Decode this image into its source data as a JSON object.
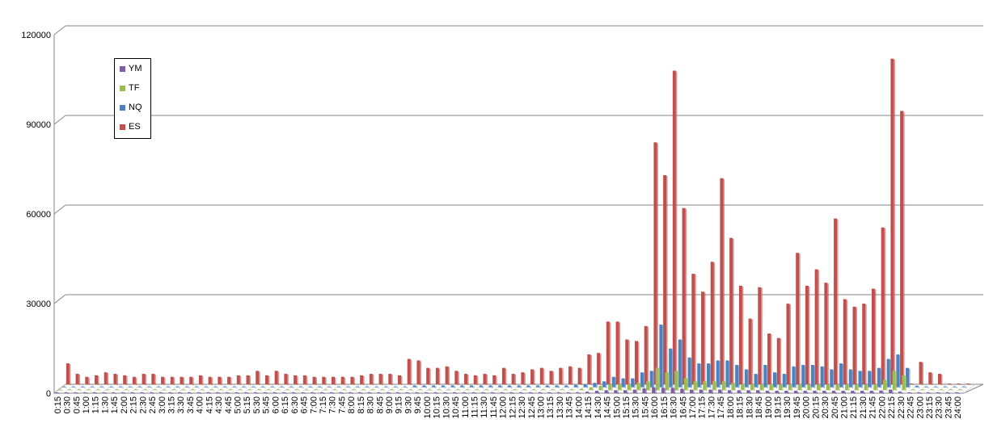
{
  "chart_data": {
    "type": "bar",
    "title": "",
    "xlabel": "",
    "ylabel": "",
    "ylim": [
      0,
      120000
    ],
    "yticks": [
      0,
      30000,
      60000,
      90000,
      120000
    ],
    "grid": true,
    "legend_position": "top-left",
    "categories": [
      "0:15",
      "0:30",
      "0:45",
      "1:00",
      "1:15",
      "1:30",
      "1:45",
      "2:00",
      "2:15",
      "2:30",
      "2:45",
      "3:00",
      "3:15",
      "3:30",
      "3:45",
      "4:00",
      "4:15",
      "4:30",
      "4:45",
      "5:00",
      "5:15",
      "5:30",
      "5:45",
      "6:00",
      "6:15",
      "6:30",
      "6:45",
      "7:00",
      "7:15",
      "7:30",
      "7:45",
      "8:00",
      "8:15",
      "8:30",
      "8:45",
      "9:00",
      "9:15",
      "9:30",
      "9:45",
      "10:00",
      "10:15",
      "10:30",
      "10:45",
      "11:00",
      "11:15",
      "11:30",
      "11:45",
      "12:00",
      "12:15",
      "12:30",
      "12:45",
      "13:00",
      "13:15",
      "13:30",
      "13:45",
      "14:00",
      "14:15",
      "14:30",
      "14:45",
      "15:00",
      "15:15",
      "15:30",
      "15:45",
      "16:00",
      "16:15",
      "16:30",
      "16:45",
      "17:00",
      "17:15",
      "17:30",
      "17:45",
      "18:00",
      "18:15",
      "18:30",
      "18:45",
      "19:00",
      "19:15",
      "19:30",
      "19:45",
      "20:00",
      "20:15",
      "20:30",
      "20:45",
      "21:00",
      "21:15",
      "21:30",
      "21:45",
      "22:00",
      "22:15",
      "22:30",
      "22:45",
      "23:00",
      "23:15",
      "23:30",
      "23:45",
      "24:00"
    ],
    "series": [
      {
        "name": "YM",
        "color": "#7b5da8",
        "values": [
          0,
          0,
          0,
          0,
          0,
          0,
          0,
          0,
          0,
          0,
          0,
          0,
          0,
          0,
          0,
          0,
          0,
          0,
          0,
          0,
          0,
          0,
          0,
          0,
          0,
          0,
          0,
          0,
          0,
          0,
          0,
          0,
          0,
          0,
          0,
          0,
          0,
          100,
          100,
          100,
          100,
          100,
          100,
          100,
          100,
          100,
          100,
          100,
          100,
          100,
          100,
          100,
          100,
          100,
          100,
          300,
          500,
          800,
          1000,
          1000,
          1000,
          1200,
          1600,
          2000,
          1800,
          1800,
          1500,
          1200,
          1200,
          1200,
          1200,
          1000,
          1000,
          1000,
          1000,
          800,
          800,
          800,
          800,
          800,
          800,
          800,
          800,
          800,
          800,
          800,
          800,
          900,
          1200,
          500,
          0,
          0,
          0,
          0,
          0,
          0
        ]
      },
      {
        "name": "TF",
        "color": "#9bbb59",
        "values": [
          0,
          0,
          0,
          0,
          0,
          0,
          0,
          0,
          0,
          0,
          0,
          0,
          0,
          0,
          0,
          0,
          0,
          0,
          0,
          0,
          0,
          0,
          0,
          0,
          0,
          0,
          0,
          0,
          0,
          0,
          0,
          0,
          0,
          0,
          0,
          0,
          0,
          200,
          200,
          200,
          200,
          200,
          200,
          200,
          200,
          200,
          200,
          200,
          200,
          200,
          200,
          200,
          200,
          200,
          300,
          500,
          1000,
          1500,
          2000,
          2000,
          2000,
          2500,
          3000,
          7500,
          6000,
          6500,
          4000,
          3000,
          3000,
          3000,
          3000,
          2500,
          2000,
          2000,
          2000,
          2000,
          1800,
          1800,
          1800,
          1800,
          1800,
          1800,
          1800,
          1800,
          1800,
          1800,
          2000,
          3500,
          6500,
          5000,
          0,
          0,
          0,
          0,
          0,
          0
        ]
      },
      {
        "name": "NQ",
        "color": "#4f81bd",
        "values": [
          200,
          200,
          200,
          200,
          200,
          200,
          200,
          200,
          200,
          200,
          200,
          200,
          200,
          200,
          200,
          200,
          200,
          200,
          200,
          200,
          200,
          200,
          200,
          200,
          200,
          200,
          200,
          200,
          200,
          200,
          200,
          200,
          200,
          200,
          200,
          200,
          200,
          600,
          600,
          600,
          600,
          600,
          600,
          600,
          600,
          600,
          600,
          600,
          600,
          600,
          600,
          600,
          600,
          600,
          800,
          1000,
          1500,
          2000,
          3500,
          3000,
          3000,
          5000,
          5500,
          21000,
          13000,
          16000,
          10000,
          8000,
          8000,
          9000,
          9000,
          7500,
          6000,
          4500,
          7500,
          5000,
          4500,
          7000,
          7500,
          7500,
          7000,
          6000,
          8000,
          6000,
          5500,
          5500,
          6500,
          9500,
          11000,
          6500,
          500,
          200,
          200,
          200,
          200,
          200
        ]
      },
      {
        "name": "ES",
        "color": "#c0504d",
        "values": [
          7000,
          3500,
          2500,
          3000,
          4000,
          3500,
          3000,
          2500,
          3500,
          3500,
          2500,
          2500,
          2500,
          2500,
          3000,
          2500,
          2500,
          2500,
          3000,
          3000,
          4500,
          3000,
          4500,
          3500,
          3000,
          3000,
          2500,
          2500,
          2500,
          2500,
          2500,
          3000,
          3500,
          3500,
          3500,
          3000,
          8500,
          8000,
          5500,
          5500,
          6000,
          4500,
          3500,
          3000,
          3500,
          3000,
          5500,
          3500,
          4000,
          5000,
          5500,
          4500,
          5500,
          6000,
          5500,
          10000,
          10500,
          21000,
          21000,
          15000,
          14500,
          19500,
          81000,
          70000,
          105000,
          59000,
          37000,
          31000,
          41000,
          69000,
          49000,
          33000,
          22000,
          32500,
          17000,
          15500,
          27000,
          44000,
          33000,
          38500,
          34000,
          55500,
          28500,
          26000,
          27000,
          32000,
          52500,
          109000,
          91500,
          0,
          7500,
          4000,
          3500,
          0,
          0,
          0
        ]
      }
    ]
  }
}
